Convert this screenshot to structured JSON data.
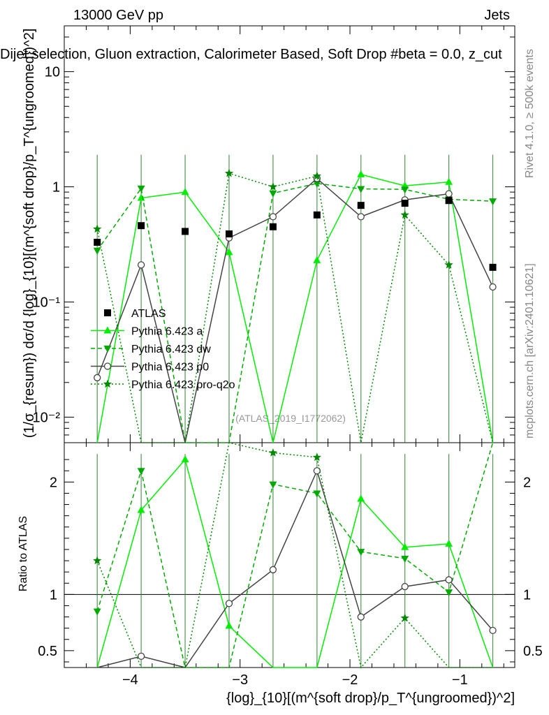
{
  "header": {
    "left": "13000 GeV pp",
    "right": "Jets",
    "title": "Dijet selection, Gluon extraction, Calorimeter Based, Soft Drop #beta = 0.0, z_cut"
  },
  "side_text": {
    "rivet": "Rivet 4.1.0, ≥ 500k events",
    "mcplots": "mcplots.cern.ch [arXiv:2401.10621]"
  },
  "watermark": "(ATLAS_2019_I1772062)",
  "labels": {
    "ylabel_main": "(1/σ_{resum}) dσ/d {log}_{10}[(m^{soft drop}/p_T^{ungroomed})^2]",
    "ylabel_ratio": "Ratio to ATLAS",
    "xlabel": "{log}_{10}[(m^{soft drop}/p_T^{ungroomed})^2]"
  },
  "colors": {
    "atlas": "#000000",
    "a": "#00ee00",
    "dw": "#00aa00",
    "p0": "#444444",
    "pro": "#008800"
  },
  "chart_data": {
    "type": "line",
    "xlim": [
      -4.6,
      -0.5
    ],
    "ylim_main": [
      0.006,
      25
    ],
    "ylim_ratio": [
      0.35,
      2.35
    ],
    "x_ticks": [
      "−4",
      "−3",
      "−2",
      "−1"
    ],
    "y_ticks_main": [
      "10⁻²",
      "10⁻¹",
      "1",
      "10"
    ],
    "y_ticks_ratio": [
      "0.5",
      "1",
      "2"
    ],
    "x": [
      -4.3,
      -3.9,
      -3.5,
      -3.1,
      -2.7,
      -2.3,
      -1.9,
      -1.5,
      -1.1,
      -0.7
    ],
    "legend": [
      "ATLAS",
      "Pythia 6.423 a",
      "Pythia 6.423 dw",
      "Pythia 6.423 p0",
      "Pythia 6.423 pro-q2o"
    ],
    "series": [
      {
        "name": "ATLAS",
        "values": [
          0.33,
          0.46,
          0.41,
          0.39,
          0.45,
          0.57,
          0.69,
          0.72,
          0.76,
          0.2
        ]
      },
      {
        "name": "Pythia 6.423 a",
        "values": [
          0.001,
          0.8,
          0.9,
          0.27,
          0.001,
          0.23,
          1.28,
          1.02,
          1.1,
          0.001
        ]
      },
      {
        "name": "Pythia 6.423 dw",
        "values": [
          0.28,
          0.97,
          0.001,
          0.001,
          0.88,
          1.07,
          0.96,
          0.95,
          0.78,
          0.75
        ]
      },
      {
        "name": "Pythia 6.423 p0",
        "values": [
          0.022,
          0.21,
          0.001,
          0.36,
          0.55,
          1.18,
          0.55,
          0.77,
          0.87,
          0.135
        ]
      },
      {
        "name": "Pythia 6.423 pro-q2o",
        "values": [
          0.43,
          0.001,
          0.001,
          1.31,
          1.0,
          1.24,
          0.001,
          0.57,
          0.21,
          0.001
        ]
      }
    ],
    "ratio_series": [
      {
        "name": "Pythia 6.423 a",
        "values": [
          0.001,
          1.75,
          2.2,
          0.72,
          0.001,
          0.3,
          1.85,
          1.42,
          1.45,
          0.001
        ]
      },
      {
        "name": "Pythia 6.423 dw",
        "values": [
          0.85,
          2.1,
          0.001,
          0.001,
          1.98,
          1.9,
          1.38,
          1.32,
          1.02,
          3.5
        ]
      },
      {
        "name": "Pythia 6.423 p0",
        "values": [
          0.07,
          0.45,
          0.001,
          0.92,
          1.22,
          2.1,
          0.8,
          1.07,
          1.13,
          0.68
        ]
      },
      {
        "name": "Pythia 6.423 pro-q2o",
        "values": [
          1.3,
          0.001,
          0.001,
          3.4,
          2.26,
          2.22,
          0.001,
          0.79,
          0.28,
          0.001
        ]
      }
    ]
  }
}
